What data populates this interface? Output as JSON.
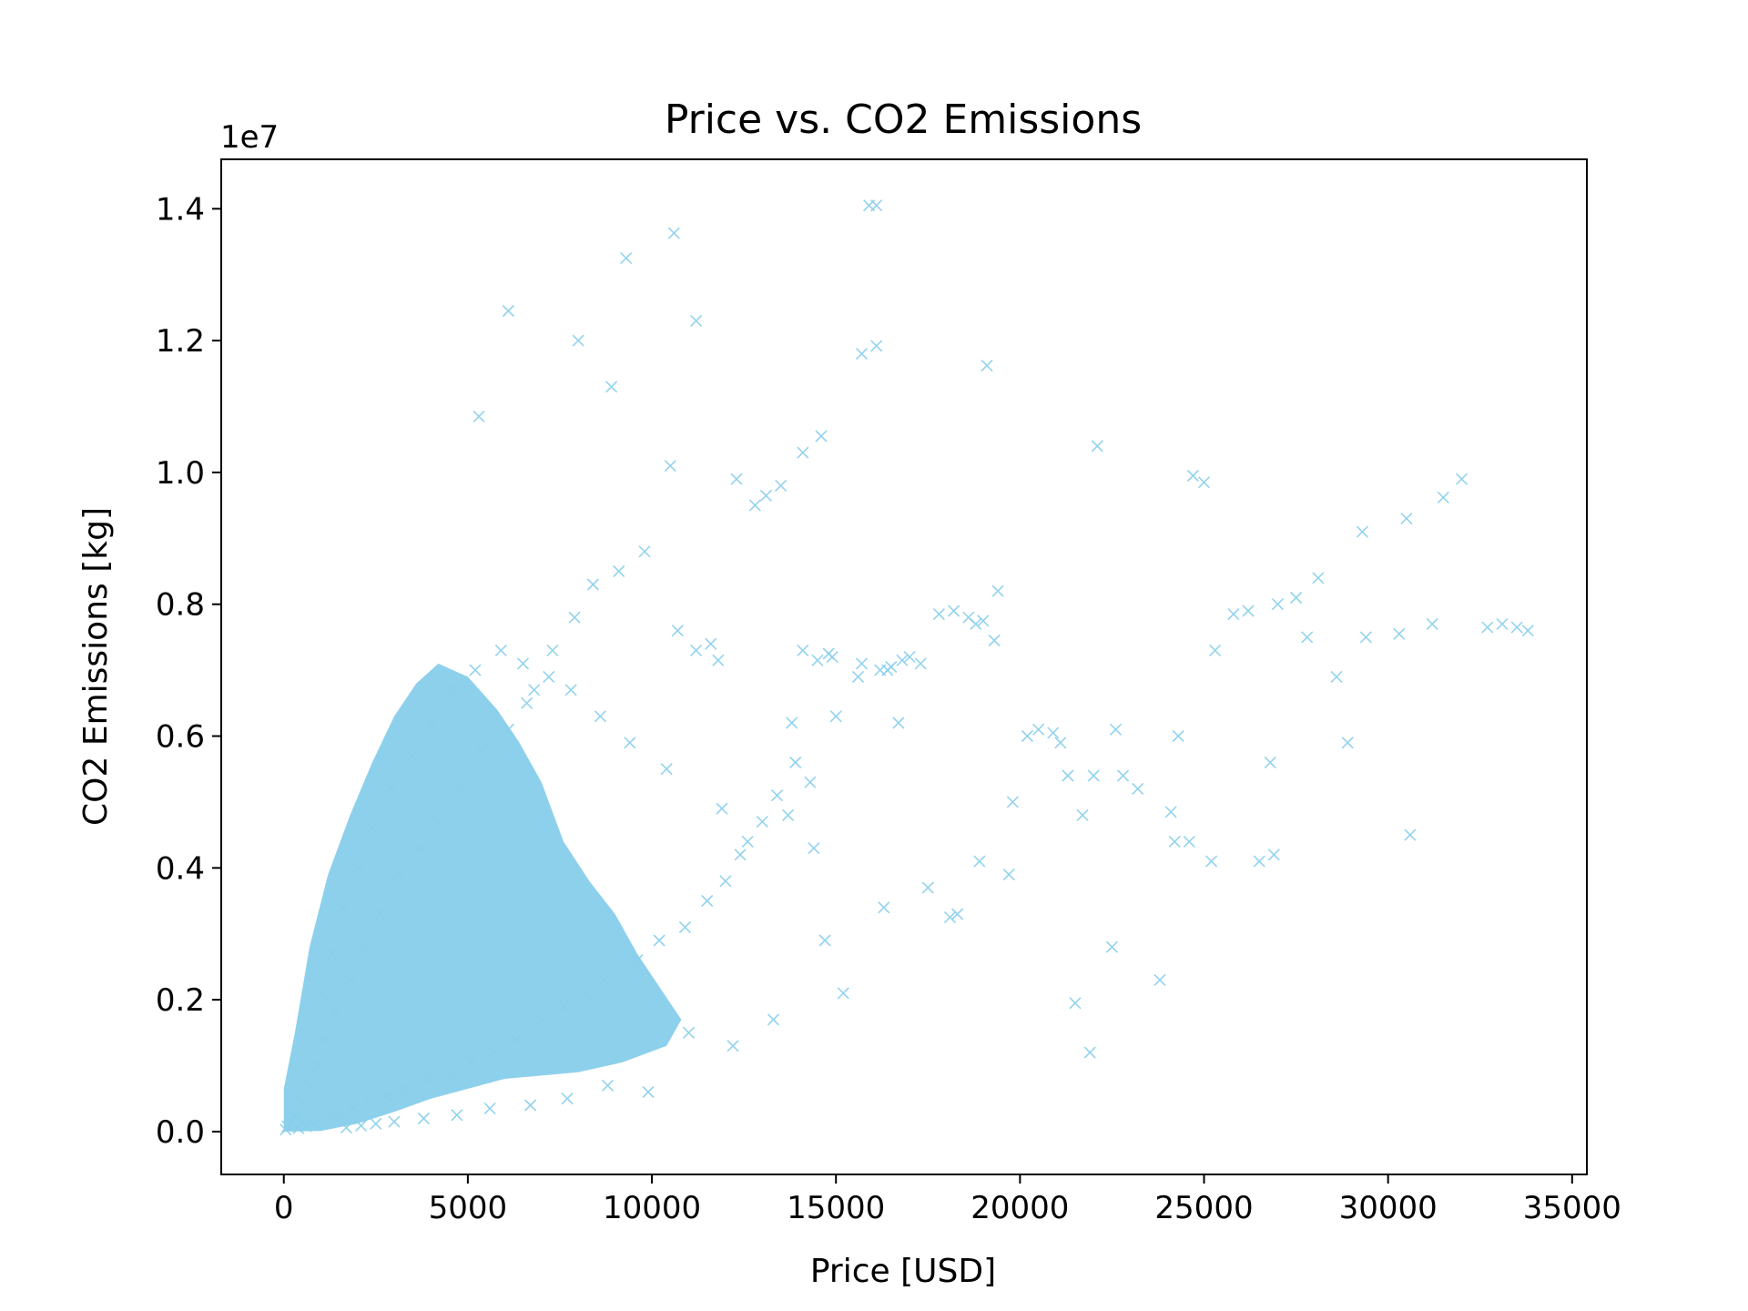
{
  "chart_data": {
    "type": "scatter",
    "title": "Price vs. CO2 Emissions",
    "xlabel": "Price [USD]",
    "ylabel": "CO2 Emissions [kg]",
    "y_offset_label": "1e7",
    "y_multiplier": 10000000,
    "xlim": [
      -1700,
      35400
    ],
    "ylim": [
      -650000,
      14750000
    ],
    "x_ticks": [
      0,
      5000,
      10000,
      15000,
      20000,
      25000,
      30000,
      35000
    ],
    "x_tick_labels": [
      "0",
      "5000",
      "10000",
      "15000",
      "20000",
      "25000",
      "30000",
      "35000"
    ],
    "y_ticks": [
      0,
      2000000,
      4000000,
      6000000,
      8000000,
      10000000,
      12000000,
      14000000
    ],
    "y_tick_labels": [
      "0.0",
      "0.2",
      "0.4",
      "0.6",
      "0.8",
      "1.0",
      "1.2",
      "1.4"
    ],
    "grid": false,
    "legend": "none",
    "marker": "x",
    "color": "#87ceeb",
    "series": [
      {
        "x": [
          15900,
          16100,
          10600,
          9300,
          6100,
          11200,
          19100,
          16100,
          15700,
          8000,
          8900,
          14600,
          14100,
          5300,
          10500,
          22100,
          24700,
          25000,
          32000,
          31500,
          30500,
          29300,
          28100,
          28600,
          27500,
          27000,
          26200,
          25800,
          25300,
          33800,
          33500,
          32700,
          30300,
          29400,
          30600,
          26800,
          24300,
          24200,
          26500,
          26900,
          25200,
          24100,
          22000,
          21700,
          21900,
          22500,
          22600,
          21500,
          20500,
          20900,
          21300,
          23800,
          19700,
          19800,
          18300,
          18100,
          17800,
          18600,
          17000,
          16800,
          16500,
          16200,
          15700,
          15200,
          14900,
          14800,
          14500,
          14100,
          13800,
          13500,
          13100,
          12800,
          12300,
          11800,
          11600,
          11200,
          10700,
          9800,
          9100,
          8400,
          7900,
          7300,
          6800,
          6600,
          6100,
          5400,
          4800,
          4200,
          3700,
          3100,
          2600,
          2200,
          1800,
          1400,
          1100,
          900,
          700,
          500,
          300,
          200,
          100,
          50,
          18200,
          19000,
          19300,
          18800,
          17300,
          16400,
          15600,
          15000,
          13900,
          13400,
          13000,
          12400,
          12000,
          11500,
          10900,
          10200,
          9600,
          8700,
          8200,
          7600,
          7000,
          6300,
          5700,
          5100,
          4500,
          3900,
          3300,
          2800,
          2300,
          1900,
          1500,
          1200,
          800,
          600,
          400,
          14300,
          14400,
          13700,
          12600,
          11900,
          10400,
          9400,
          8600,
          7800,
          7200,
          6500,
          5900,
          5200,
          4600,
          4000,
          3500,
          2900,
          2400,
          2000,
          1600,
          1300,
          1000,
          16700,
          17500,
          18900,
          19400,
          20200,
          21100,
          22800,
          23200,
          24600,
          27800,
          28900,
          31200,
          33100,
          16300,
          14700,
          13300,
          12200,
          11000,
          9900,
          8800,
          7700,
          6700,
          5600,
          4700,
          3800,
          3000,
          2500,
          2100,
          1700
        ],
        "y": [
          14050000,
          14050000,
          13630000,
          13250000,
          12450000,
          12300000,
          11620000,
          11920000,
          11800000,
          12000000,
          11300000,
          10550000,
          10300000,
          10850000,
          10100000,
          10400000,
          9950000,
          9850000,
          9900000,
          9620000,
          9300000,
          9100000,
          8400000,
          6900000,
          8100000,
          8000000,
          7900000,
          7850000,
          7300000,
          7600000,
          7650000,
          7650000,
          7550000,
          7500000,
          4500000,
          5600000,
          6000000,
          4400000,
          4100000,
          4200000,
          4100000,
          4850000,
          5400000,
          4800000,
          1200000,
          2800000,
          6100000,
          1950000,
          6100000,
          6050000,
          5400000,
          2300000,
          3900000,
          5000000,
          3300000,
          3250000,
          7850000,
          7800000,
          7200000,
          7150000,
          7050000,
          7000000,
          7100000,
          2100000,
          7200000,
          7250000,
          7150000,
          7300000,
          6200000,
          9800000,
          9650000,
          9500000,
          9900000,
          7150000,
          7400000,
          7300000,
          7600000,
          8800000,
          8500000,
          8300000,
          7800000,
          7300000,
          6700000,
          6500000,
          6100000,
          5800000,
          5200000,
          4700000,
          4300000,
          3900000,
          3300000,
          2800000,
          2300000,
          1800000,
          1400000,
          1000000,
          700000,
          450000,
          250000,
          150000,
          80000,
          30000,
          7900000,
          7750000,
          7450000,
          7700000,
          7100000,
          7000000,
          6900000,
          6300000,
          5600000,
          5100000,
          4700000,
          4200000,
          3800000,
          3500000,
          3100000,
          2900000,
          2600000,
          2300000,
          2100000,
          1900000,
          1700000,
          1400000,
          1200000,
          1050000,
          900000,
          800000,
          650000,
          550000,
          450000,
          350000,
          250000,
          180000,
          120000,
          80000,
          50000,
          5300000,
          4300000,
          4800000,
          4400000,
          4900000,
          5500000,
          5900000,
          6300000,
          6700000,
          6900000,
          7100000,
          7300000,
          7000000,
          6700000,
          6200000,
          5700000,
          5200000,
          4600000,
          4000000,
          3400000,
          2700000,
          2100000,
          6200000,
          3700000,
          4100000,
          8200000,
          6000000,
          5900000,
          5400000,
          5200000,
          4400000,
          7500000,
          5900000,
          7700000,
          7700000,
          3400000,
          2900000,
          1700000,
          1300000,
          1500000,
          600000,
          700000,
          500000,
          400000,
          350000,
          250000,
          200000,
          150000,
          120000,
          90000,
          60000
        ]
      }
    ]
  }
}
